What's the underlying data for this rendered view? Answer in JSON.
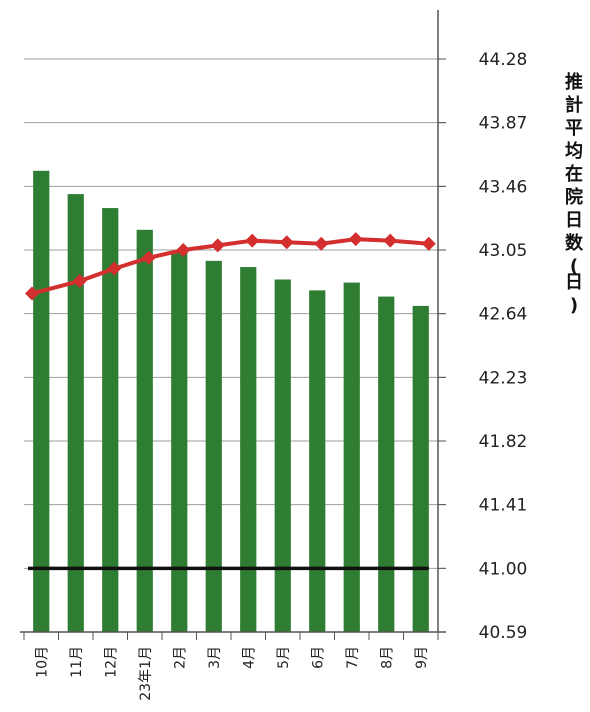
{
  "chart_data": {
    "type": "bar",
    "title": "",
    "xlabel": "",
    "ylabel": "推計平均在院日数(日)",
    "ylim": [
      40.59,
      44.28
    ],
    "yticks": [
      44.28,
      43.87,
      43.46,
      43.05,
      42.64,
      42.23,
      41.82,
      41.41,
      41.0,
      40.59
    ],
    "y_axis_position": "right",
    "grid": true,
    "categories": [
      "10月",
      "11月",
      "12月",
      "23年1月",
      "2月",
      "3月",
      "4月",
      "5月",
      "6月",
      "7月",
      "8月",
      "9月"
    ],
    "series": [
      {
        "type": "bar",
        "color": "#2e7d32",
        "values": [
          43.56,
          43.41,
          43.32,
          43.18,
          43.04,
          42.98,
          42.94,
          42.86,
          42.79,
          42.84,
          42.75,
          42.69
        ]
      },
      {
        "type": "line",
        "color": "#d32f2f",
        "marker": "diamond",
        "values": [
          42.77,
          42.85,
          42.93,
          43.0,
          43.05,
          43.08,
          43.11,
          43.1,
          43.09,
          43.12,
          43.11,
          43.09
        ]
      },
      {
        "type": "line",
        "color": "#111111",
        "values": [
          41.0,
          41.0,
          41.0,
          41.0,
          41.0,
          41.0,
          41.0,
          41.0,
          41.0,
          41.0,
          41.0,
          41.0
        ]
      }
    ]
  }
}
